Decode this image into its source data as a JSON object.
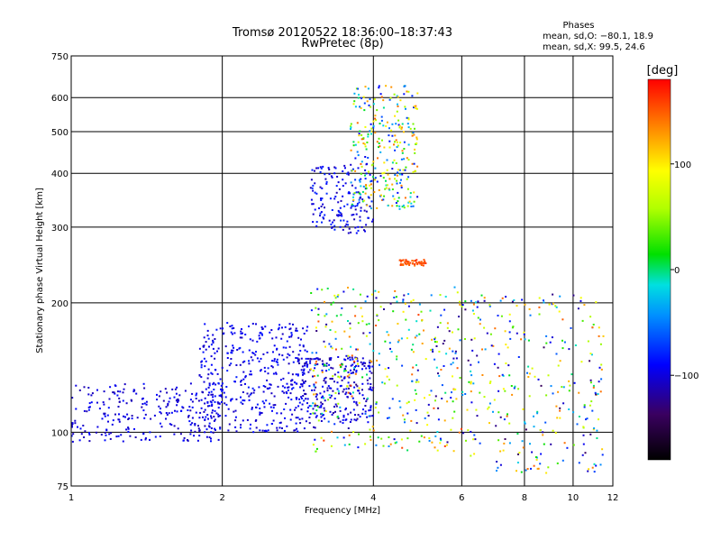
{
  "chart_data": {
    "type": "scatter",
    "title": "Tromsø 20120522 18:36:00–18:37:43",
    "subtitle": "RwPretec (8p)",
    "xlabel": "Frequency [MHz]",
    "ylabel": "Stationary phase Virtual Height [km]",
    "x_scale": "log",
    "y_scale": "log",
    "xlim": [
      1,
      12
    ],
    "ylim": [
      75,
      750
    ],
    "x_ticks": [
      1,
      2,
      4,
      6,
      8,
      10,
      12
    ],
    "y_ticks": [
      75,
      100,
      200,
      300,
      400,
      500,
      600,
      750
    ],
    "grid": true,
    "phase_info": {
      "heading": "Phases",
      "line1": "mean, sd,O: −80.1, 18.9",
      "line2": "mean, sd,X:  99.5, 24.6"
    },
    "colorbar": {
      "label": "[deg]",
      "range": [
        -180,
        180
      ],
      "ticks": [
        100,
        0,
        -100
      ],
      "tick_labels": [
        "100",
        "0",
        "−100"
      ]
    },
    "regions": [
      {
        "x": [
          1.0,
          2.0
        ],
        "y": [
          95,
          130
        ],
        "phase": [
          -115,
          -85
        ],
        "n": 260
      },
      {
        "x": [
          1.8,
          3.0
        ],
        "y": [
          100,
          180
        ],
        "phase": [
          -110,
          -80
        ],
        "n": 420
      },
      {
        "x": [
          2.8,
          4.0
        ],
        "y": [
          105,
          150
        ],
        "phase": [
          -120,
          -85
        ],
        "n": 260
      },
      {
        "x": [
          3.0,
          4.0
        ],
        "y": [
          290,
          420
        ],
        "phase": [
          -115,
          -75
        ],
        "n": 160
      },
      {
        "x": [
          3.6,
          4.9
        ],
        "y": [
          330,
          640
        ],
        "phase": [
          -100,
          150
        ],
        "n": 300
      },
      {
        "x": [
          3.0,
          6.0
        ],
        "y": [
          90,
          220
        ],
        "phase": [
          -130,
          160
        ],
        "n": 380
      },
      {
        "x": [
          6.0,
          11.5
        ],
        "y": [
          80,
          210
        ],
        "phase": [
          -140,
          150
        ],
        "n": 300
      },
      {
        "x": [
          4.5,
          5.1
        ],
        "y": [
          244,
          252
        ],
        "phase": [
          140,
          165
        ],
        "n": 50
      }
    ]
  }
}
